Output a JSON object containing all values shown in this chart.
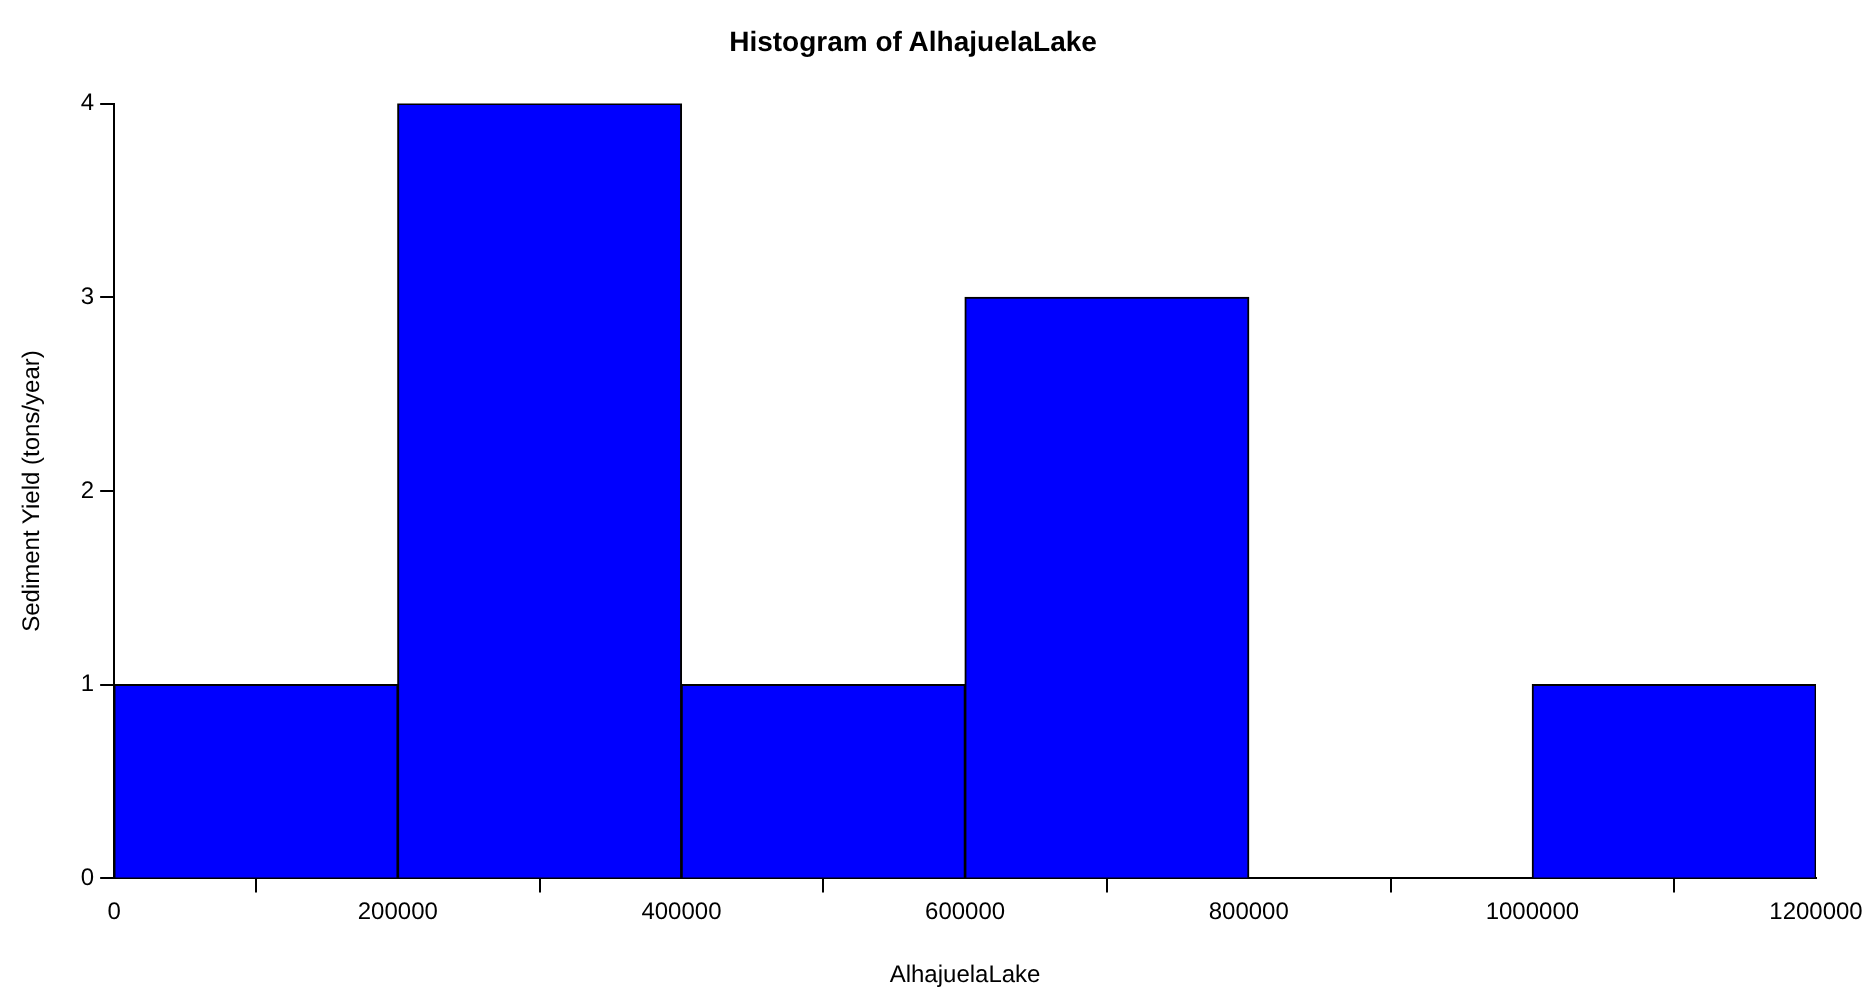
{
  "chart_data": {
    "type": "histogram",
    "title": "Histogram of AlhajuelaLake",
    "xlabel": "AlhajuelaLake",
    "ylabel": "Sediment Yield (tons/year)",
    "bins": [
      0,
      200000,
      400000,
      600000,
      800000,
      1000000,
      1200000
    ],
    "values": [
      1,
      4,
      1,
      3,
      0,
      1
    ],
    "color": "#0000ff",
    "xlim": [
      0,
      1200000
    ],
    "xticks": [
      0,
      200000,
      400000,
      600000,
      800000,
      1000000,
      1200000
    ],
    "ylim": [
      0,
      4
    ],
    "yticks": [
      0,
      1,
      2,
      3,
      4
    ],
    "grid": false,
    "legend": false
  }
}
